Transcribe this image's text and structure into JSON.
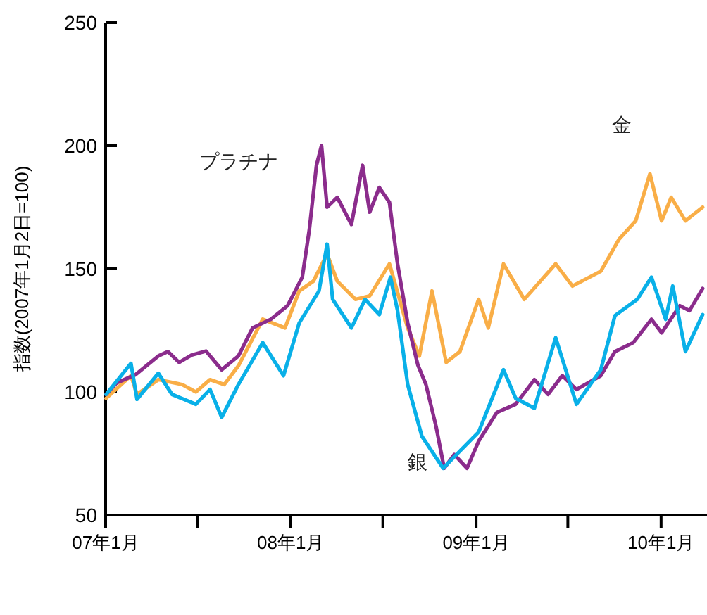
{
  "chart_data": {
    "type": "line",
    "ylabel": "指数(2007年1月2日=100)",
    "xlim": [
      "2007-01-01",
      "2010-03-27"
    ],
    "ylim": [
      50,
      250
    ],
    "yticks": [
      50,
      100,
      150,
      200,
      250
    ],
    "xticks": [
      {
        "value": "2007-01-01",
        "label": "07年1月"
      },
      {
        "value": "2007-07-01",
        "label": null
      },
      {
        "value": "2008-01-01",
        "label": "08年1月"
      },
      {
        "value": "2008-07-01",
        "label": null
      },
      {
        "value": "2009-01-01",
        "label": "09年1月"
      },
      {
        "value": "2009-07-01",
        "label": null
      },
      {
        "value": "2010-01-01",
        "label": "10年1月"
      }
    ],
    "grid": false,
    "legend": false,
    "marker": "none",
    "line_style": "solid",
    "series": [
      {
        "name": "金",
        "color": "#f9ae47",
        "x": [
          "2007-01-02",
          "2007-02-20",
          "2007-03-04",
          "2007-04-15",
          "2007-06-01",
          "2007-06-28",
          "2007-07-26",
          "2007-08-23",
          "2007-09-20",
          "2007-11-07",
          "2007-12-21",
          "2008-01-18",
          "2008-02-15",
          "2008-03-13",
          "2008-04-02",
          "2008-05-08",
          "2008-06-05",
          "2008-07-14",
          "2008-08-19",
          "2008-09-11",
          "2008-10-06",
          "2008-11-03",
          "2008-11-30",
          "2009-01-06",
          "2009-01-25",
          "2009-02-24",
          "2009-04-06",
          "2009-06-07",
          "2009-07-10",
          "2009-09-04",
          "2009-10-10",
          "2009-11-12",
          "2009-12-10",
          "2010-01-02",
          "2010-01-21",
          "2010-02-18",
          "2010-03-24"
        ],
        "values": [
          97.4,
          106.6,
          99,
          105,
          103,
          100,
          105,
          103,
          110.6,
          129.5,
          126,
          141,
          145,
          156,
          145,
          137.6,
          139,
          152,
          126,
          114.6,
          141,
          112,
          116.4,
          137.6,
          126,
          152,
          137.6,
          152,
          143,
          149,
          162,
          169.5,
          188.6,
          169.5,
          179,
          169.5,
          175
        ]
      },
      {
        "name": "プラチナ",
        "color": "#8b2c8c",
        "x": [
          "2007-01-02",
          "2007-01-23",
          "2007-03-01",
          "2007-04-15",
          "2007-05-04",
          "2007-05-26",
          "2007-06-20",
          "2007-07-18",
          "2007-08-18",
          "2007-09-20",
          "2007-10-18",
          "2007-11-23",
          "2007-12-26",
          "2008-01-24",
          "2008-02-07",
          "2008-02-21",
          "2008-03-02",
          "2008-03-13",
          "2008-04-02",
          "2008-04-30",
          "2008-05-22",
          "2008-06-05",
          "2008-06-24",
          "2008-07-14",
          "2008-07-30",
          "2008-08-19",
          "2008-09-08",
          "2008-09-24",
          "2008-10-14",
          "2008-10-30",
          "2008-11-19",
          "2008-12-14",
          "2009-01-06",
          "2009-02-11",
          "2009-03-20",
          "2009-04-26",
          "2009-05-23",
          "2009-06-20",
          "2009-07-18",
          "2009-09-04",
          "2009-10-02",
          "2009-11-07",
          "2009-12-13",
          "2010-01-02",
          "2010-02-07",
          "2010-02-26",
          "2010-03-24"
        ],
        "values": [
          99,
          103.7,
          107,
          114.6,
          116.4,
          112,
          115,
          116.6,
          109,
          114.6,
          126,
          129.5,
          135,
          146.6,
          166,
          192,
          200,
          175,
          179,
          168,
          192,
          173,
          183,
          177,
          152,
          128,
          111,
          103,
          86,
          69,
          74.6,
          69,
          80,
          91.7,
          95,
          105,
          99,
          106.6,
          101,
          106.6,
          116.4,
          120,
          129.5,
          124,
          135,
          133,
          142
        ]
      },
      {
        "name": "銀",
        "color": "#09b0e8",
        "x": [
          "2007-01-02",
          "2007-02-20",
          "2007-03-04",
          "2007-04-15",
          "2007-05-12",
          "2007-06-28",
          "2007-07-26",
          "2007-08-18",
          "2007-09-20",
          "2007-11-07",
          "2007-12-18",
          "2008-01-18",
          "2008-02-26",
          "2008-03-13",
          "2008-03-24",
          "2008-04-30",
          "2008-05-27",
          "2008-06-24",
          "2008-07-16",
          "2008-07-30",
          "2008-08-19",
          "2008-09-16",
          "2008-10-28",
          "2008-11-30",
          "2009-01-06",
          "2009-02-24",
          "2009-03-20",
          "2009-04-26",
          "2009-06-07",
          "2009-07-18",
          "2009-09-04",
          "2009-10-02",
          "2009-11-15",
          "2009-12-13",
          "2010-01-10",
          "2010-01-24",
          "2010-02-18",
          "2010-03-24"
        ],
        "values": [
          99,
          111.6,
          97,
          107.6,
          99,
          95,
          101,
          89.7,
          103,
          120,
          106.6,
          128,
          141,
          160,
          137.6,
          126,
          137.6,
          131.4,
          146.6,
          133,
          103,
          82,
          69,
          76,
          83.7,
          109,
          97.4,
          93.4,
          122,
          95,
          109,
          131,
          137.6,
          146.6,
          129.5,
          143,
          116.4,
          131.4
        ]
      }
    ]
  }
}
